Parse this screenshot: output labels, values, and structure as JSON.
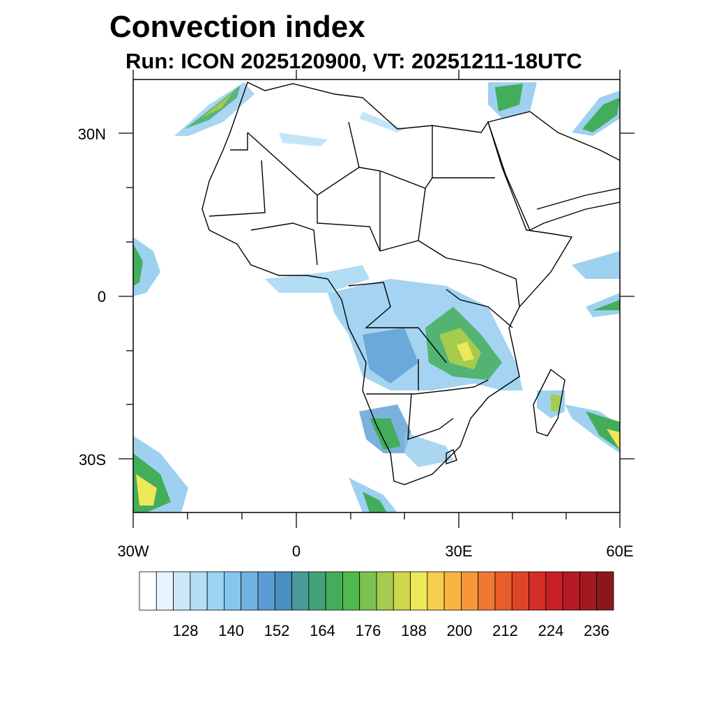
{
  "title": "Convection index",
  "subtitle": "Run: ICON 2025120900,  VT: 20251211-18UTC",
  "map": {
    "lon_range": [
      -30,
      60
    ],
    "lat_range": [
      -40,
      40
    ],
    "lat_labels": [
      "30N",
      "0",
      "30S"
    ],
    "lon_labels": [
      "30W",
      "0",
      "30E",
      "60E"
    ]
  },
  "colorbar": {
    "labels": [
      "128",
      "140",
      "152",
      "164",
      "176",
      "188",
      "200",
      "212",
      "224",
      "236"
    ],
    "colors": [
      "#ffffff",
      "#e8f4fb",
      "#cce8f7",
      "#b5def5",
      "#9dd4f3",
      "#86c5ec",
      "#70b2e2",
      "#5b9dd3",
      "#4a8fc2",
      "#4a9a9a",
      "#44a27a",
      "#44ad5c",
      "#50b84c",
      "#7cc250",
      "#a6cb4e",
      "#cfd74c",
      "#ede85a",
      "#f6cd4f",
      "#f8b443",
      "#f6983a",
      "#ef7932",
      "#e85d2b",
      "#e04428",
      "#d52d27",
      "#c62026",
      "#b51b24",
      "#a11a20",
      "#8b171c"
    ]
  }
}
